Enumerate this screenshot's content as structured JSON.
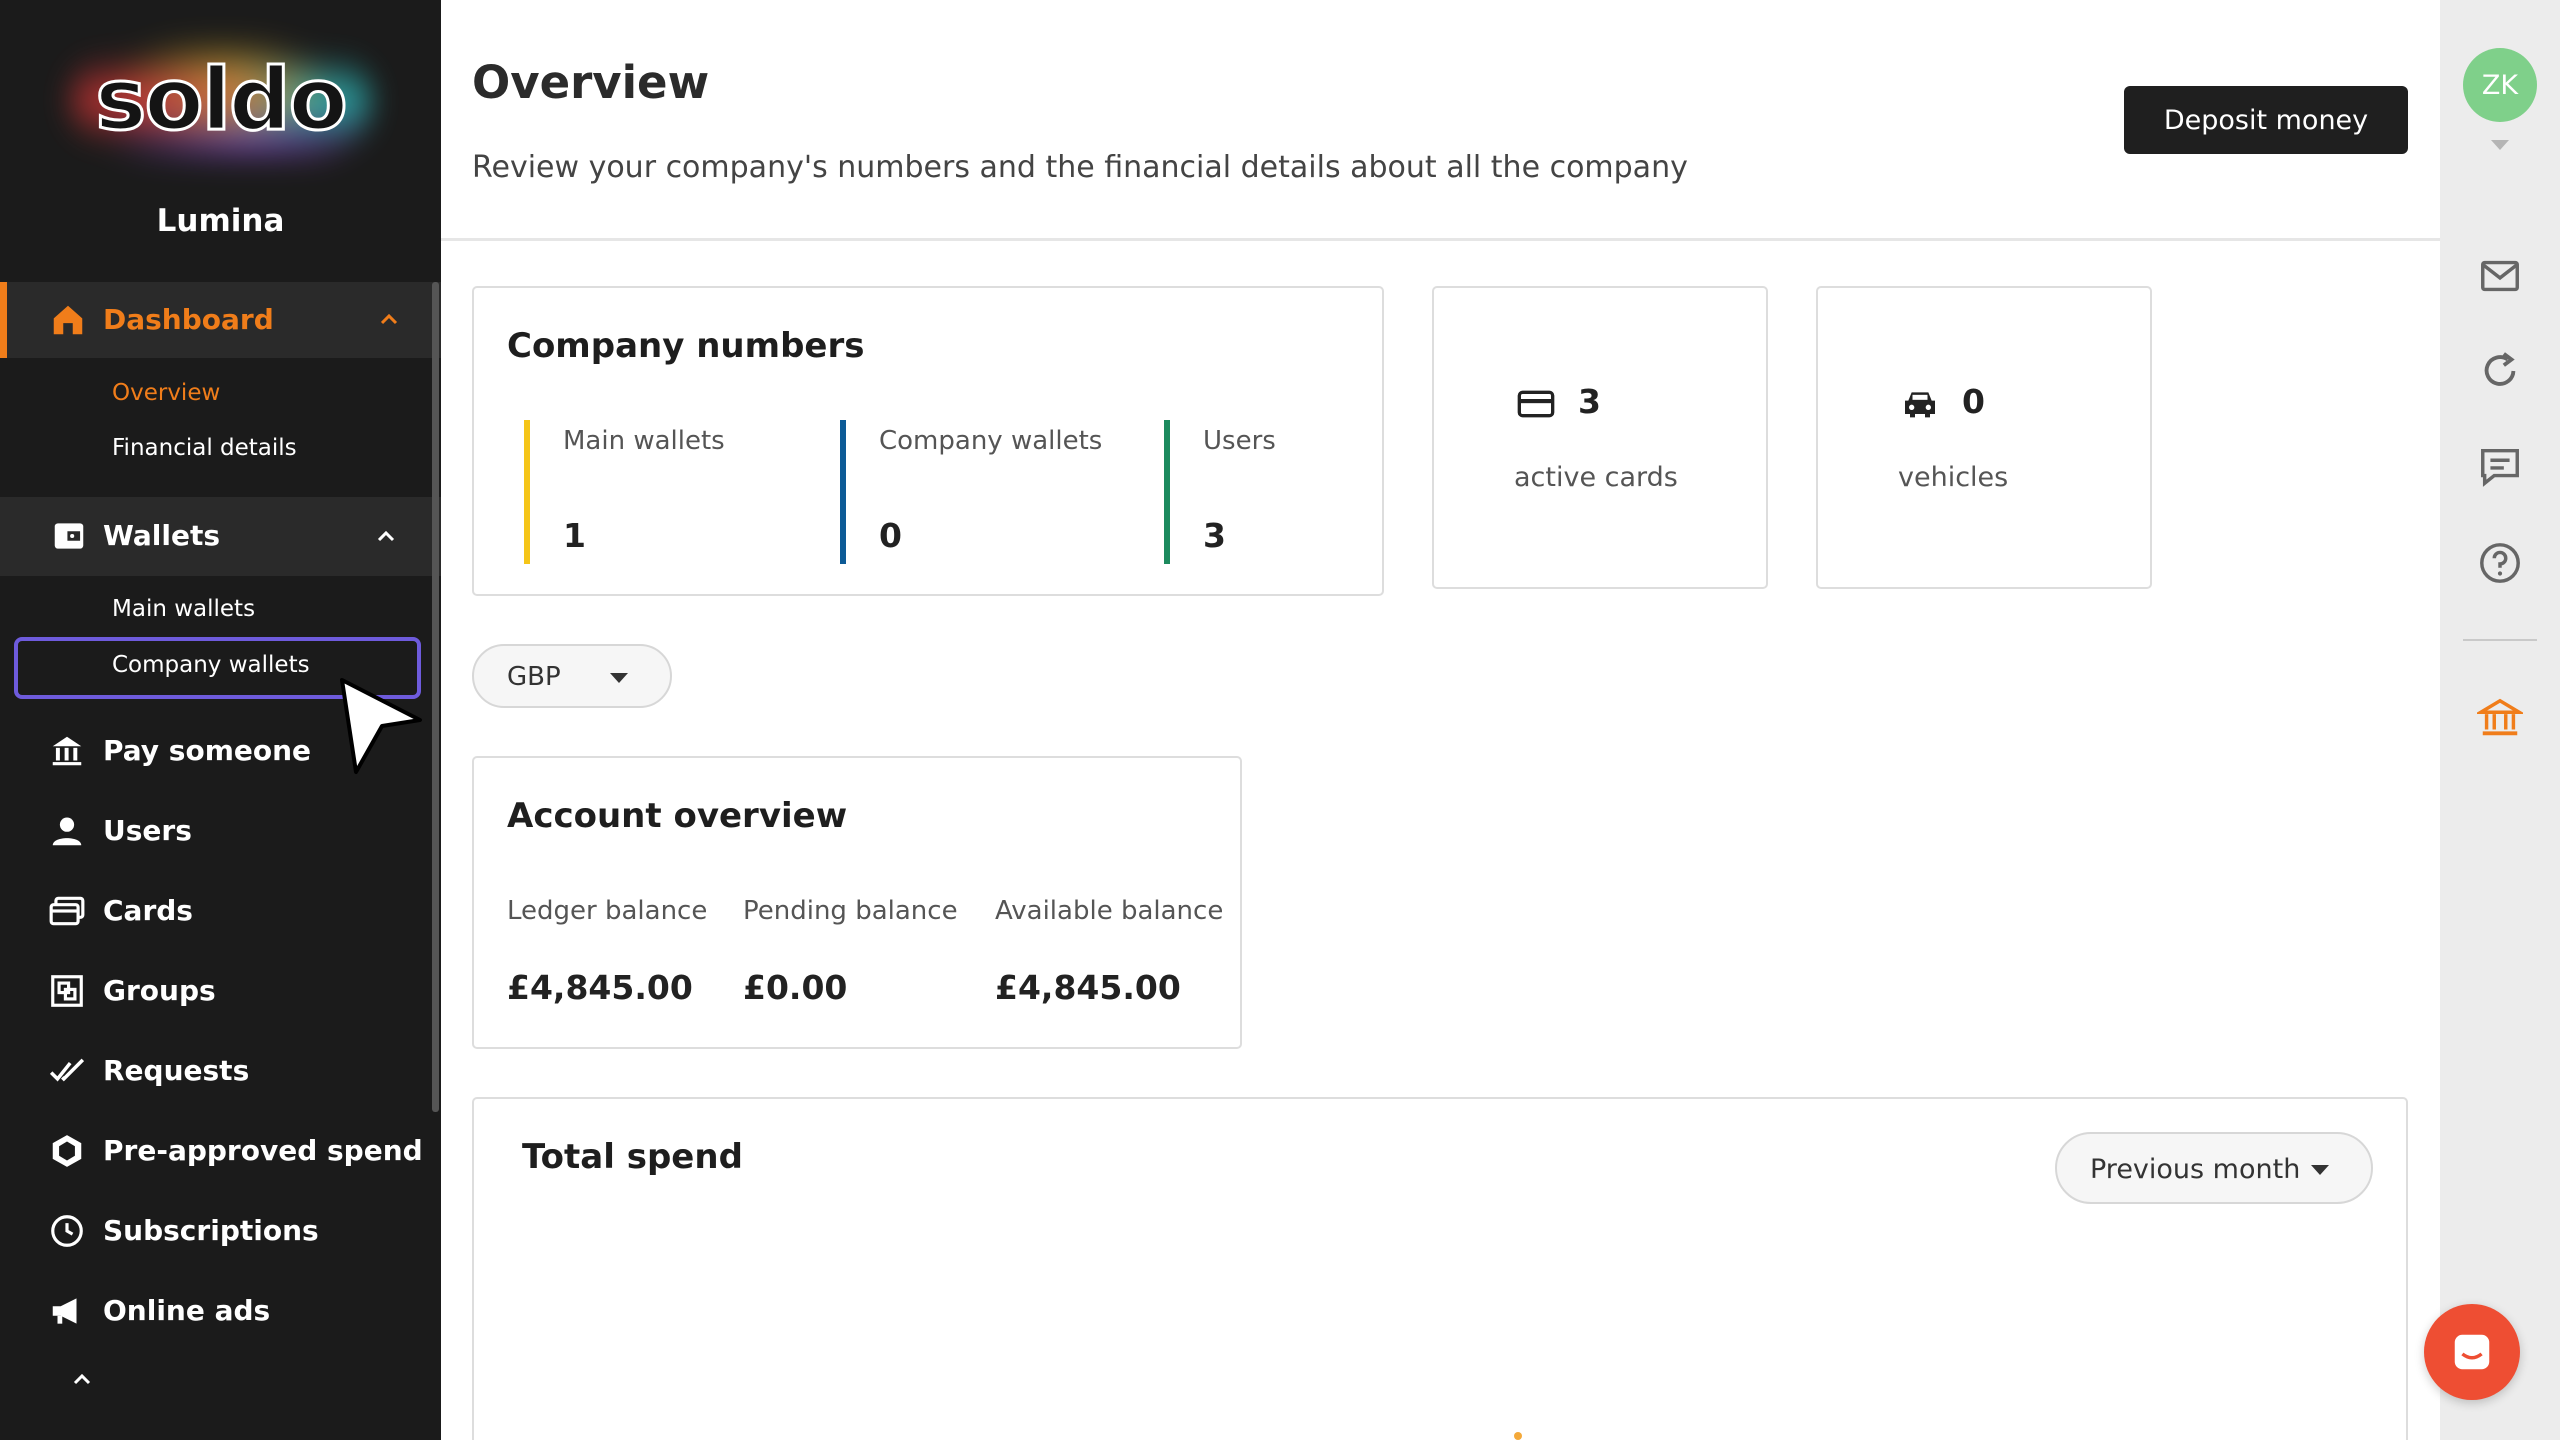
{
  "brand": {
    "logo_text": "soldo",
    "org_name": "Lumina"
  },
  "sidebar": {
    "dashboard": {
      "label": "Dashboard",
      "sub": [
        "Overview",
        "Financial details"
      ]
    },
    "wallets": {
      "label": "Wallets",
      "sub": [
        "Main wallets",
        "Company wallets"
      ]
    },
    "items": [
      "Pay someone",
      "Users",
      "Cards",
      "Groups",
      "Requests",
      "Pre-approved spend",
      "Subscriptions",
      "Online ads"
    ]
  },
  "header": {
    "title": "Overview",
    "subtitle": "Review your company's numbers and the financial details about all the company",
    "deposit_label": "Deposit money"
  },
  "user": {
    "initials": "ZK"
  },
  "company_numbers": {
    "title": "Company numbers",
    "stats": [
      {
        "label": "Main wallets",
        "value": "1",
        "color": "#f5c518"
      },
      {
        "label": "Company wallets",
        "value": "0",
        "color": "#0c5a96"
      },
      {
        "label": "Users",
        "value": "3",
        "color": "#1d8a5e"
      }
    ]
  },
  "active_cards": {
    "value": "3",
    "label": "active cards"
  },
  "vehicles": {
    "value": "0",
    "label": "vehicles"
  },
  "currency_select": {
    "value": "GBP"
  },
  "account_overview": {
    "title": "Account overview",
    "balances": [
      {
        "label": "Ledger balance",
        "value": "£4,845.00"
      },
      {
        "label": "Pending balance",
        "value": "£0.00"
      },
      {
        "label": "Available balance",
        "value": "£4,845.00"
      }
    ]
  },
  "total_spend": {
    "title": "Total spend",
    "period": "Previous month"
  },
  "colors": {
    "accent": "#f07d1a",
    "sidebar_bg": "#1b1b1b",
    "focus_ring": "#6e5bdc",
    "chat": "#ee4e33"
  }
}
